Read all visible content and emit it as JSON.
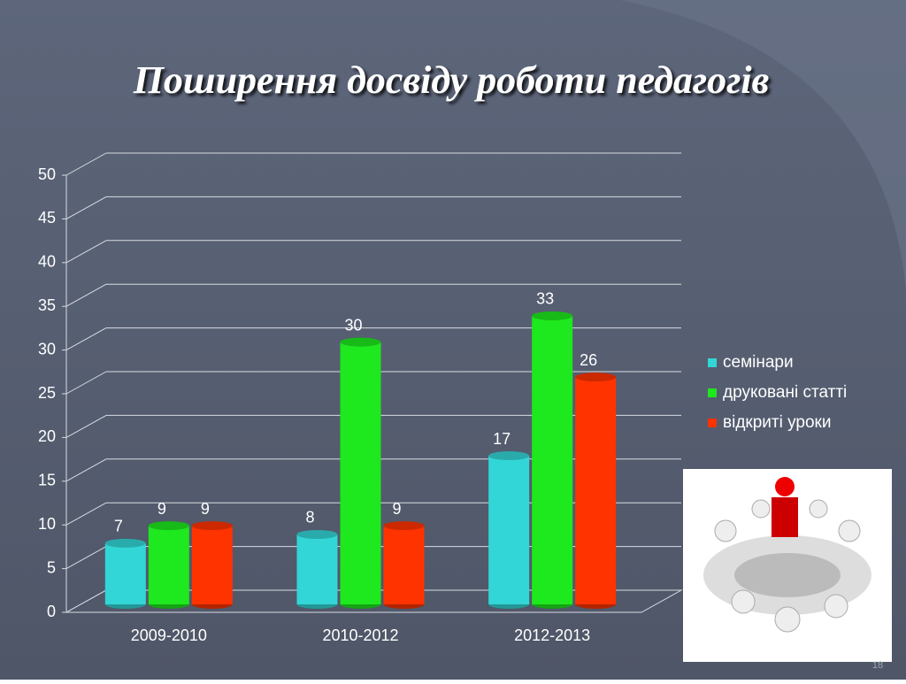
{
  "title": "Поширення досвіду роботи педагогів",
  "slide_number": "18",
  "chart_data": {
    "type": "bar",
    "categories": [
      "2009-2010",
      "2010-2012",
      "2012-2013"
    ],
    "series": [
      {
        "name": "семінари",
        "color": "#33d6d6",
        "values": [
          7,
          8,
          17
        ]
      },
      {
        "name": "друковані статті",
        "color": "#1ee81e",
        "values": [
          9,
          30,
          33
        ]
      },
      {
        "name": "відкриті уроки",
        "color": "#ff3300",
        "values": [
          9,
          9,
          26
        ]
      }
    ],
    "ylim": [
      0,
      50
    ],
    "yticks": [
      0,
      5,
      10,
      15,
      20,
      25,
      30,
      35,
      40,
      45,
      50
    ],
    "grid": true,
    "legend": "right"
  }
}
